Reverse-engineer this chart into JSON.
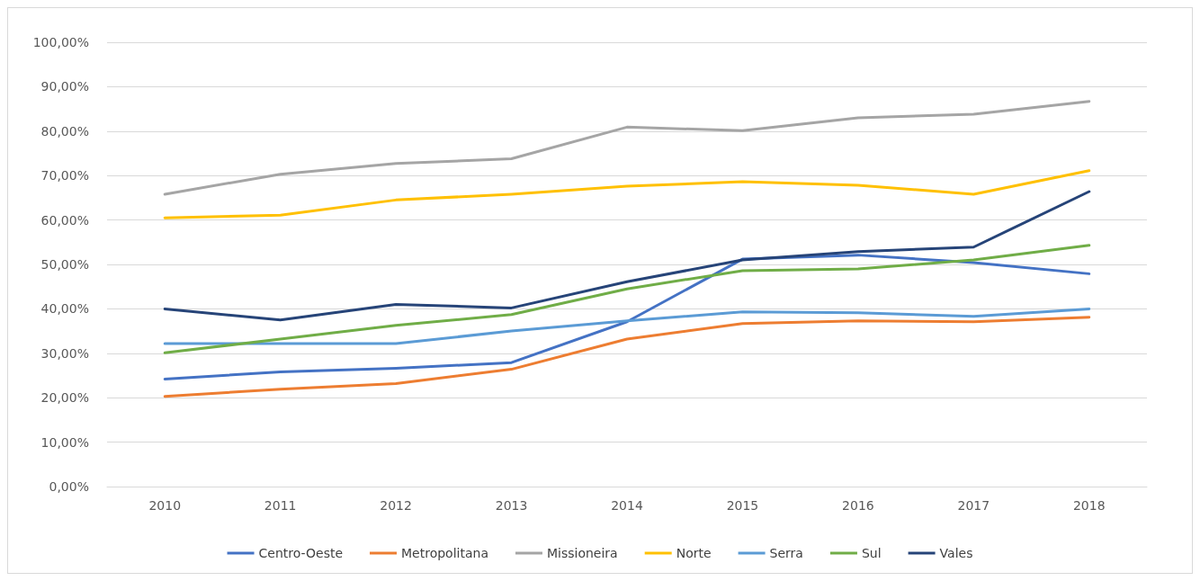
{
  "chart_data": {
    "type": "line",
    "categories": [
      "2010",
      "2011",
      "2012",
      "2013",
      "2014",
      "2015",
      "2016",
      "2017",
      "2018"
    ],
    "series": [
      {
        "name": "Centro-Oeste",
        "color": "#4472c4",
        "values": [
          24.2,
          25.8,
          26.6,
          27.9,
          37.1,
          51.2,
          52.1,
          50.4,
          47.9
        ]
      },
      {
        "name": "Metropolitana",
        "color": "#ed7d31",
        "values": [
          20.3,
          21.9,
          23.2,
          26.4,
          33.2,
          36.7,
          37.3,
          37.1,
          38.1
        ]
      },
      {
        "name": "Missioneira",
        "color": "#a5a5a5",
        "values": [
          65.8,
          70.3,
          72.7,
          73.8,
          80.9,
          80.1,
          83.0,
          83.8,
          86.7
        ]
      },
      {
        "name": "Norte",
        "color": "#ffc000",
        "values": [
          60.5,
          61.1,
          64.5,
          65.8,
          67.6,
          68.6,
          67.8,
          65.8,
          71.1
        ]
      },
      {
        "name": "Serra",
        "color": "#5b9bd5",
        "values": [
          32.2,
          32.2,
          32.2,
          35.0,
          37.3,
          39.3,
          39.1,
          38.3,
          40.0
        ]
      },
      {
        "name": "Sul",
        "color": "#70ad47",
        "values": [
          30.1,
          33.2,
          36.3,
          38.7,
          44.5,
          48.6,
          49.0,
          51.0,
          54.3
        ]
      },
      {
        "name": "Vales",
        "color": "#264478",
        "values": [
          40.0,
          37.5,
          41.0,
          40.2,
          46.1,
          51.0,
          52.9,
          53.9,
          66.4
        ]
      }
    ],
    "ylim": [
      0,
      100
    ],
    "yticks": [
      {
        "value": 0,
        "label": "0,00%"
      },
      {
        "value": 10,
        "label": "10,00%"
      },
      {
        "value": 20,
        "label": "20,00%"
      },
      {
        "value": 30,
        "label": "30,00%"
      },
      {
        "value": 40,
        "label": "40,00%"
      },
      {
        "value": 50,
        "label": "50,00%"
      },
      {
        "value": 60,
        "label": "60,00%"
      },
      {
        "value": 70,
        "label": "70,00%"
      },
      {
        "value": 80,
        "label": "80,00%"
      },
      {
        "value": 90,
        "label": "90,00%"
      },
      {
        "value": 100,
        "label": "100,00%"
      }
    ],
    "grid": "y",
    "legend": "bottom",
    "marker": "none",
    "line_style": "solid"
  }
}
